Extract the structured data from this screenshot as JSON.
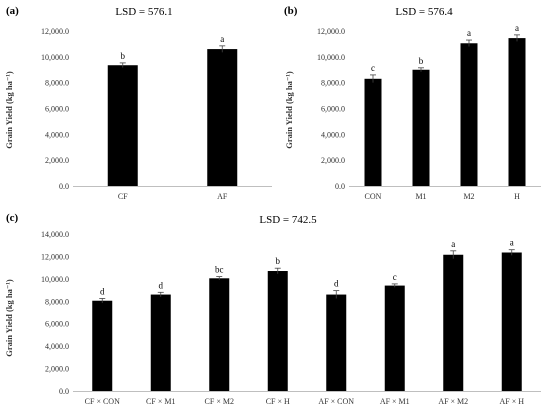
{
  "chart_data": [
    {
      "id": "a",
      "type": "bar",
      "panel_label": "(a)",
      "lsd_label": "LSD = 576.1",
      "ylabel": "Grain Yield (kg ha⁻¹)",
      "ylim": [
        0,
        12000
      ],
      "yticks": [
        "0.0",
        "2,000.0",
        "4,000.0",
        "6,000.0",
        "8,000.0",
        "10,000.0",
        "12,000.0"
      ],
      "categories": [
        "CF",
        "AF"
      ],
      "values": [
        9350,
        10600
      ],
      "errors": [
        180,
        250
      ],
      "letters": [
        "b",
        "a"
      ],
      "bar_color": "#000000",
      "grid": false
    },
    {
      "id": "b",
      "type": "bar",
      "panel_label": "(b)",
      "lsd_label": "LSD = 576.4",
      "ylabel": "Grain Yield (kg ha⁻¹)",
      "ylim": [
        0,
        12000
      ],
      "yticks": [
        "0.0",
        "2,000.0",
        "4,000.0",
        "6,000.0",
        "8,000.0",
        "10,000.0",
        "12,000.0"
      ],
      "categories": [
        "CON",
        "M1",
        "M2",
        "H"
      ],
      "values": [
        8300,
        9000,
        11050,
        11450
      ],
      "errors": [
        300,
        150,
        250,
        250
      ],
      "letters": [
        "c",
        "b",
        "a",
        "a"
      ],
      "bar_color": "#000000",
      "grid": false
    },
    {
      "id": "c",
      "type": "bar",
      "panel_label": "(c)",
      "lsd_label": "LSD = 742.5",
      "ylabel": "Grain Yield (kg ha⁻¹)",
      "ylim": [
        0,
        14000
      ],
      "yticks": [
        "0.0",
        "2,000.0",
        "4,000.0",
        "6,000.0",
        "8,000.0",
        "10,000.0",
        "12,000.0",
        "14,000.0"
      ],
      "categories": [
        "CF × CON",
        "CF × M1",
        "CF × M2",
        "CF × H",
        "AF × CON",
        "AF × M1",
        "AF × M2",
        "AF × H"
      ],
      "values": [
        8050,
        8600,
        10050,
        10700,
        8600,
        9400,
        12150,
        12350
      ],
      "errors": [
        200,
        200,
        150,
        250,
        350,
        150,
        350,
        250
      ],
      "letters": [
        "d",
        "d",
        "bc",
        "b",
        "d",
        "c",
        "a",
        "a"
      ],
      "bar_color": "#000000",
      "grid": false
    }
  ]
}
